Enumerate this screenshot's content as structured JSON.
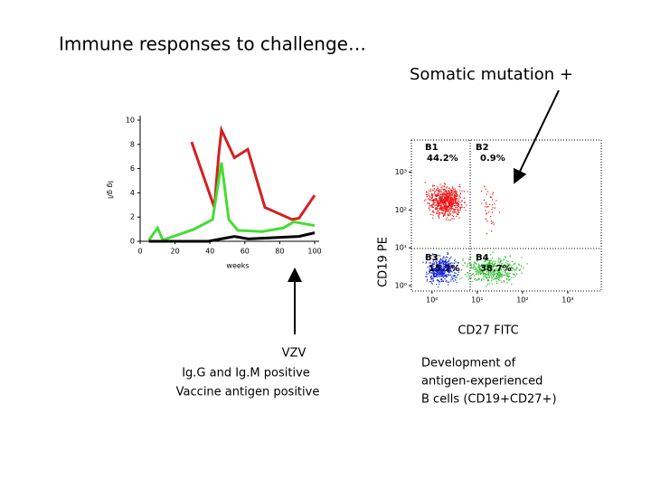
{
  "title": "Immune responses to challenge…",
  "callout": "Somatic mutation +",
  "left_caption": [
    "VZV",
    "Ig.G and Ig.M positive",
    "Vaccine antigen positive"
  ],
  "right_caption": [
    "Development of",
    "antigen-experienced",
    "B cells (CD19+CD27+)"
  ],
  "chart_data": [
    {
      "type": "line",
      "x_label": "weeks",
      "y_label": "Ig g/l",
      "xlim": [
        0,
        100
      ],
      "ylim": [
        0,
        10
      ],
      "xticks": [
        0,
        20,
        40,
        60,
        80,
        100
      ],
      "yticks": [
        0,
        2,
        4,
        6,
        8,
        10
      ],
      "series": [
        {
          "color": "#d42020",
          "x": [
            29.5,
            42.5,
            45,
            46.6,
            54,
            61.7,
            71.5,
            87,
            91,
            100
          ],
          "values": [
            8.2,
            2.8,
            7.1,
            9.2,
            6.9,
            7.6,
            2.8,
            1.8,
            1.9,
            3.8
          ]
        },
        {
          "color": "#44dd33",
          "x": [
            5,
            10,
            13,
            21,
            31,
            41.5,
            46.6,
            50.8,
            56,
            70,
            82,
            88,
            100
          ],
          "values": [
            0.1,
            1.1,
            0.1,
            0.5,
            1.0,
            1.8,
            6.5,
            1.8,
            0.9,
            0.8,
            1.1,
            1.6,
            1.3
          ]
        },
        {
          "color": "#000000",
          "x": [
            5,
            39,
            54,
            62,
            91,
            100
          ],
          "values": [
            0,
            0,
            0.4,
            0.2,
            0.4,
            0.7
          ]
        }
      ]
    },
    {
      "type": "scatter",
      "x_label": "CD27 FITC",
      "y_label": "CD19 PE",
      "log": true,
      "xlim": [
        0.35,
        5500
      ],
      "ylim": [
        0.72,
        7000
      ],
      "xticks": [
        {
          "value": 1,
          "label": "10⁰"
        },
        {
          "value": 10,
          "label": "10¹"
        },
        {
          "value": 100,
          "label": "10²"
        },
        {
          "value": 1000,
          "label": "10³"
        }
      ],
      "yticks": [
        {
          "value": 1,
          "label": "10⁰"
        },
        {
          "value": 10,
          "label": "10¹"
        },
        {
          "value": 100,
          "label": "10²"
        },
        {
          "value": 1000,
          "label": "10³"
        }
      ],
      "quadrants": [
        {
          "name": "B1",
          "label": "44.2%"
        },
        {
          "name": "B2",
          "label": "0.9%"
        },
        {
          "name": "B3",
          "label": "15.2%"
        },
        {
          "name": "B4",
          "label": "38.7%"
        }
      ]
    }
  ]
}
